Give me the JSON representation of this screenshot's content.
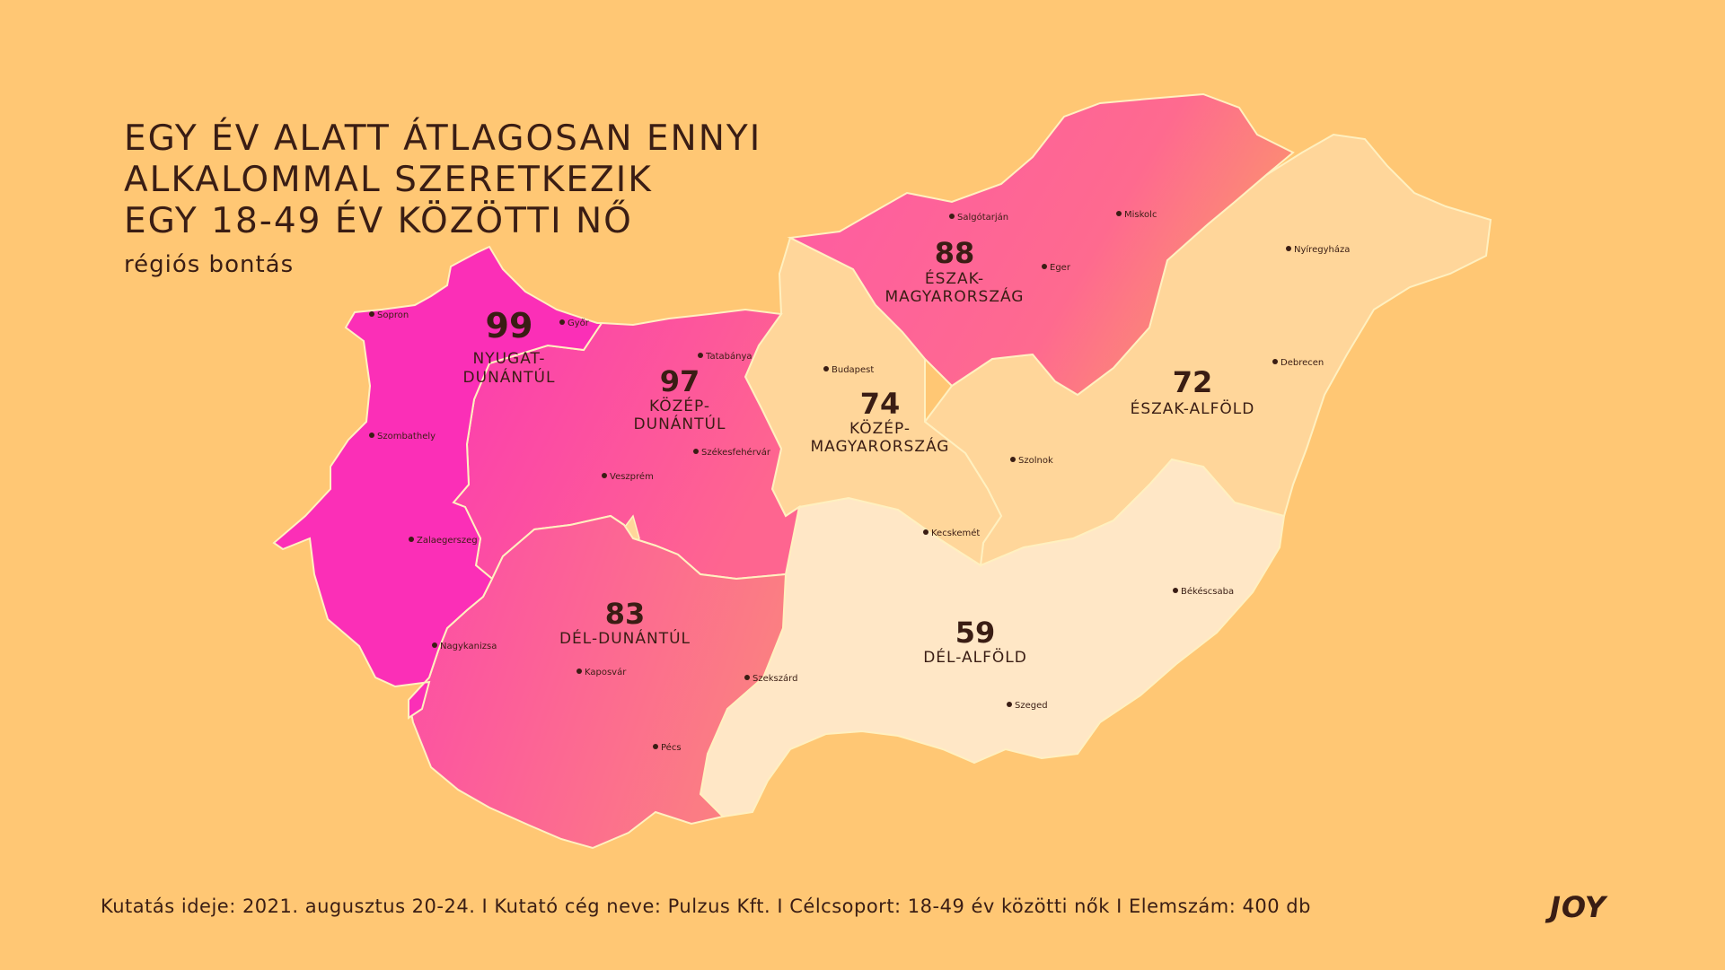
{
  "title_lines": [
    "EGY ÉV ALATT ÁTLAGOSAN ENNYI",
    "ALKALOMMAL SZERETKEZIK",
    "EGY 18-49 ÉV KÖZÖTTI NŐ"
  ],
  "subtitle": "régiós bontás",
  "footer": "Kutatás ideje: 2021. augusztus 20-24. I Kutató cég neve: Pulzus Kft. I Célcsoport: 18-49 év közötti nők I Elemszám: 400 db",
  "logo": "JOY",
  "colors": {
    "background": "#ffc774",
    "region_high": "#fb2fb7",
    "region_mid": "#fe6a8f",
    "region_low": "#ffd69a",
    "region_lowest": "#ffe7c6",
    "border": "#fff0c0",
    "text": "#3a1d14"
  },
  "regions": [
    {
      "id": "nyugat-dunantul",
      "value": "99",
      "name_lines": [
        "NYUGAT-",
        "DUNÁNTÚL"
      ]
    },
    {
      "id": "kozep-dunantul",
      "value": "97",
      "name_lines": [
        "KÖZÉP-",
        "DUNÁNTÚL"
      ]
    },
    {
      "id": "eszak-magyarorszag",
      "value": "88",
      "name_lines": [
        "ÉSZAK-",
        "MAGYARORSZÁG"
      ]
    },
    {
      "id": "del-dunantul",
      "value": "83",
      "name_lines": [
        "DÉL-DUNÁNTÚL"
      ]
    },
    {
      "id": "kozep-magyarorszag",
      "value": "74",
      "name_lines": [
        "KÖZÉP-",
        "MAGYARORSZÁG"
      ]
    },
    {
      "id": "eszak-alfold",
      "value": "72",
      "name_lines": [
        "ÉSZAK-ALFÖLD"
      ]
    },
    {
      "id": "del-alfold",
      "value": "59",
      "name_lines": [
        "DÉL-ALFÖLD"
      ]
    }
  ],
  "cities": [
    {
      "name": "Sopron"
    },
    {
      "name": "Győr"
    },
    {
      "name": "Tatabánya"
    },
    {
      "name": "Szombathely"
    },
    {
      "name": "Székesfehérvár"
    },
    {
      "name": "Veszprém"
    },
    {
      "name": "Zalaegerszeg"
    },
    {
      "name": "Nagykanizsa"
    },
    {
      "name": "Kaposvár"
    },
    {
      "name": "Szekszárd"
    },
    {
      "name": "Pécs"
    },
    {
      "name": "Budapest"
    },
    {
      "name": "Salgótarján"
    },
    {
      "name": "Miskolc"
    },
    {
      "name": "Eger"
    },
    {
      "name": "Nyíregyháza"
    },
    {
      "name": "Debrecen"
    },
    {
      "name": "Szolnok"
    },
    {
      "name": "Kecskemét"
    },
    {
      "name": "Békéscsaba"
    },
    {
      "name": "Szeged"
    }
  ]
}
